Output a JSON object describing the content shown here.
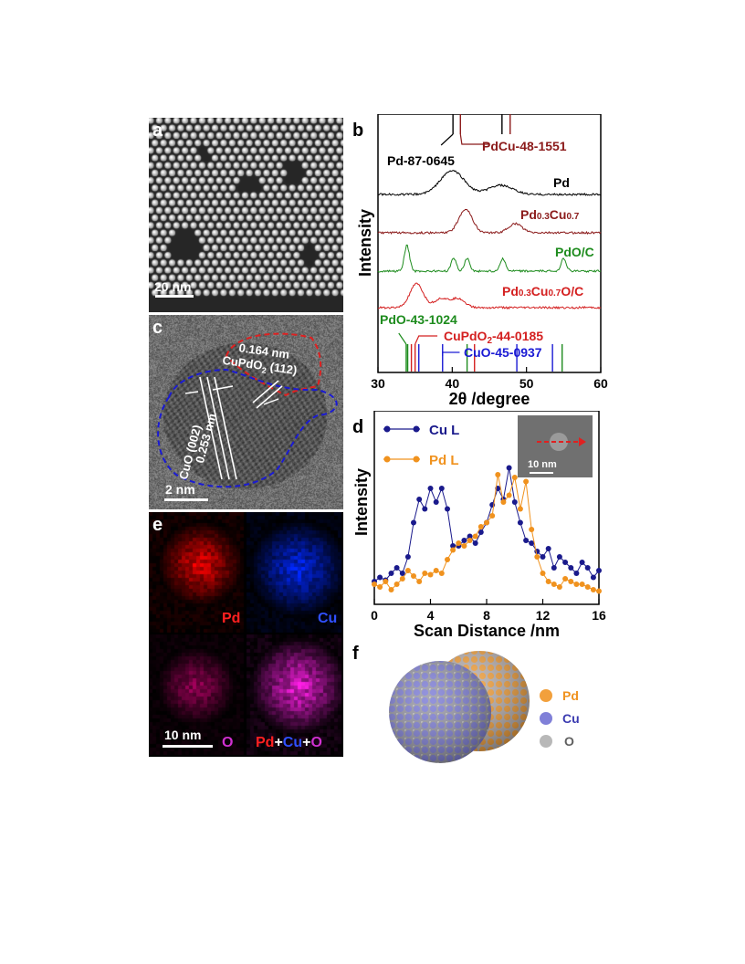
{
  "panels": {
    "a": {
      "label": "a",
      "scale_bar": "20 nm"
    },
    "b": {
      "label": "b",
      "ylabel": "Intensity",
      "xlabel": "2θ /degree",
      "x_ticks": [
        "30",
        "40",
        "50",
        "60"
      ],
      "ref_pd": "Pd-87-0645",
      "ref_pdcu": "PdCu-48-1551",
      "ref_pdo": "PdO-43-1024",
      "ref_cupdo2_pre": "CuPdO",
      "ref_cupdo2_sub": "2",
      "ref_cupdo2_post": "-44-0185",
      "ref_cuo": "CuO-45-0937",
      "traces": [
        {
          "id": "pd",
          "label": "Pd"
        },
        {
          "id": "pdcu",
          "label_a": "Pd",
          "label_b": "0.3",
          "label_c": "Cu",
          "label_d": "0.7"
        },
        {
          "id": "pdo",
          "label": "PdO/C"
        },
        {
          "id": "pdcuo",
          "label_a": "Pd",
          "label_b": "0.3",
          "label_c": "Cu",
          "label_d": "0.7",
          "label_e": "O/C"
        }
      ]
    },
    "c": {
      "label": "c",
      "ann1_line1": "0.164 nm",
      "ann1_line2_pre": "CuPdO",
      "ann1_line2_sub": "2",
      "ann1_line2_post": " (112)",
      "ann2_dist": "0.253 nm",
      "ann2_plane": "CuO (002)",
      "scale_bar": "2 nm"
    },
    "d": {
      "label": "d",
      "ylabel": "Intensity",
      "xlabel": "Scan Distance /nm",
      "x_ticks": [
        "0",
        "4",
        "8",
        "12",
        "16"
      ],
      "legend": [
        "Cu L",
        "Pd L"
      ],
      "inset_scale": "10 nm"
    },
    "e": {
      "label": "e",
      "pd": "Pd",
      "cu": "Cu",
      "o": "O",
      "merge_pd": "Pd",
      "merge_plus1": "+",
      "merge_cu": "Cu",
      "merge_plus2": "+",
      "merge_o": "O",
      "scale_bar": "10 nm"
    },
    "f": {
      "label": "f",
      "legend": [
        "Pd",
        "Cu",
        "O"
      ]
    }
  },
  "colors": {
    "pd_trace": "#000000",
    "pdcu": "#8b1a1a",
    "pdo": "#1e8c1e",
    "pdcuo": "#d42020",
    "cuo": "#1a1ad4",
    "cu_line": "#1a1a8c",
    "pd_line": "#f0921e",
    "pd_sphere": "#f2a03c",
    "cu_sphere": "#8080d8",
    "o_sphere": "#b8b8b8"
  },
  "chart_data": [
    {
      "type": "line",
      "panel": "b",
      "xlabel": "2θ /degree",
      "ylabel": "Intensity",
      "xlim": [
        30,
        60
      ],
      "series": [
        {
          "name": "Pd",
          "peaks": [
            40.0,
            46.5
          ]
        },
        {
          "name": "Pd0.3Cu0.7",
          "peaks": [
            41.8,
            48.5
          ]
        },
        {
          "name": "PdO/C",
          "peaks": [
            33.9,
            40.2,
            42.0,
            46.8,
            55.0
          ]
        },
        {
          "name": "Pd0.3Cu0.7O/C",
          "peaks": [
            35.2,
            40.8,
            38.5
          ]
        }
      ],
      "reference_lines": [
        {
          "name": "Pd-87-0645",
          "positions": [
            40.1,
            46.7
          ]
        },
        {
          "name": "PdCu-48-1551",
          "positions": [
            41.1,
            47.8
          ]
        },
        {
          "name": "PdO-43-1024",
          "positions": [
            33.8,
            34.0,
            42.0,
            54.8
          ]
        },
        {
          "name": "CuPdO2-44-0185",
          "positions": [
            34.5,
            35.0,
            43.0
          ]
        },
        {
          "name": "CuO-45-0937",
          "positions": [
            35.5,
            38.7,
            48.7,
            53.5
          ]
        }
      ]
    },
    {
      "type": "line",
      "panel": "d",
      "xlabel": "Scan Distance /nm",
      "ylabel": "Intensity",
      "xlim": [
        0,
        16
      ],
      "series": [
        {
          "name": "Cu L",
          "x": [
            0,
            0.4,
            0.8,
            1.2,
            1.6,
            2.0,
            2.4,
            2.8,
            3.2,
            3.6,
            4.0,
            4.4,
            4.8,
            5.2,
            5.6,
            6.0,
            6.4,
            6.8,
            7.2,
            7.6,
            8.0,
            8.4,
            8.8,
            9.2,
            9.6,
            10.0,
            10.4,
            10.8,
            11.2,
            11.6,
            12.0,
            12.4,
            12.8,
            13.2,
            13.6,
            14.0,
            14.4,
            14.8,
            15.2,
            15.6,
            16.0
          ],
          "y": [
            0.12,
            0.15,
            0.13,
            0.18,
            0.22,
            0.18,
            0.3,
            0.55,
            0.72,
            0.65,
            0.8,
            0.7,
            0.8,
            0.65,
            0.38,
            0.38,
            0.42,
            0.45,
            0.4,
            0.48,
            0.55,
            0.68,
            0.8,
            0.72,
            0.95,
            0.7,
            0.55,
            0.42,
            0.4,
            0.34,
            0.3,
            0.36,
            0.22,
            0.3,
            0.26,
            0.22,
            0.18,
            0.26,
            0.22,
            0.15,
            0.2
          ]
        },
        {
          "name": "Pd L",
          "x": [
            0,
            0.4,
            0.8,
            1.2,
            1.6,
            2.0,
            2.4,
            2.8,
            3.2,
            3.6,
            4.0,
            4.4,
            4.8,
            5.2,
            5.6,
            6.0,
            6.4,
            6.8,
            7.2,
            7.6,
            8.0,
            8.4,
            8.8,
            9.2,
            9.6,
            10.0,
            10.4,
            10.8,
            11.2,
            11.6,
            12.0,
            12.4,
            12.8,
            13.2,
            13.6,
            14.0,
            14.4,
            14.8,
            15.2,
            15.6,
            16.0
          ],
          "y": [
            0.1,
            0.08,
            0.12,
            0.06,
            0.1,
            0.14,
            0.2,
            0.16,
            0.12,
            0.18,
            0.17,
            0.2,
            0.18,
            0.28,
            0.35,
            0.4,
            0.38,
            0.42,
            0.45,
            0.52,
            0.55,
            0.6,
            0.9,
            0.7,
            0.75,
            0.88,
            0.65,
            0.85,
            0.5,
            0.3,
            0.18,
            0.12,
            0.1,
            0.08,
            0.14,
            0.12,
            0.1,
            0.1,
            0.08,
            0.06,
            0.05
          ]
        }
      ]
    }
  ]
}
